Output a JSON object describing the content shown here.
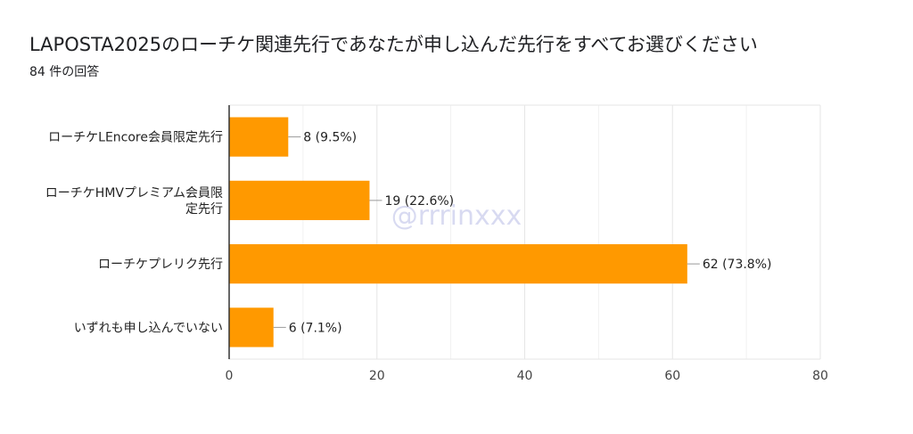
{
  "title": "LAPOSTA2025のローチケ関連先行であなたが申し込んだ先行をすべてお選びください",
  "subtitle": "84 件の回答",
  "watermark": "@rrrinxxx",
  "chart_data": {
    "type": "bar",
    "orientation": "horizontal",
    "categories": [
      [
        "ローチケLEncore会員限定先行"
      ],
      [
        "ローチケHMVプレミアム会員限",
        "定先行"
      ],
      [
        "ローチケプレリク先行"
      ],
      [
        "いずれも申し込んでいない"
      ]
    ],
    "values": [
      8,
      19,
      62,
      6
    ],
    "value_labels": [
      "8 (9.5%)",
      "19 (22.6%)",
      "62 (73.8%)",
      "6 (7.1%)"
    ],
    "xlim": [
      0,
      80
    ],
    "xticks": [
      0,
      20,
      40,
      60,
      80
    ],
    "grid": true,
    "bar_color": "#ff9900"
  }
}
